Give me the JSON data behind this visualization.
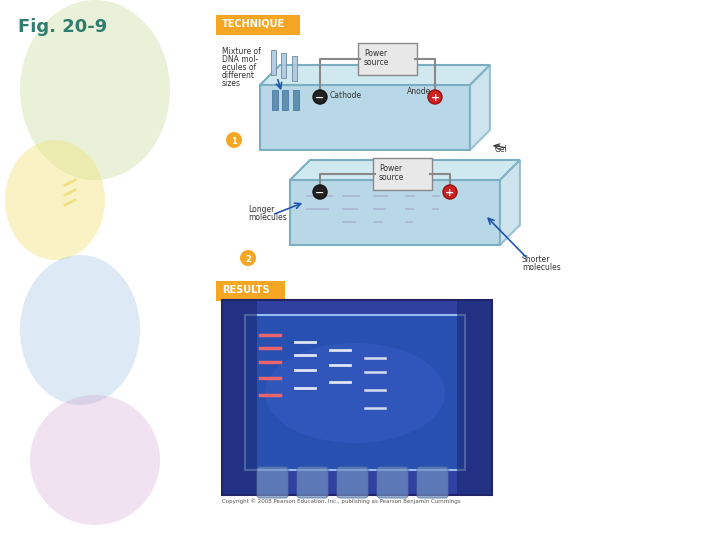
{
  "fig_label": "Fig. 20-9",
  "fig_label_color": "#2e7d6e",
  "technique_label": "TECHNIQUE",
  "technique_bg": "#f5a623",
  "results_label": "RESULTS",
  "results_bg": "#f5a623",
  "background_color": "#ffffff",
  "gel_color": "#b8d8e8",
  "gel_border": "#7aaec0",
  "gel_top": "#d0e8f0",
  "power_box_color": "#e8e8e8",
  "power_box_border": "#888888",
  "wire_color": "#888888",
  "cathode_color": "#222222",
  "anode_color": "#cc2222",
  "text_color": "#333333",
  "arrow_color": "#2255aa",
  "balloon_green": "#c8e0a0",
  "balloon_yellow": "#f0e070",
  "balloon_blue": "#a0c0e0",
  "balloon_purple": "#d0a0d0",
  "sample_tube_color": "#b0c8e0"
}
